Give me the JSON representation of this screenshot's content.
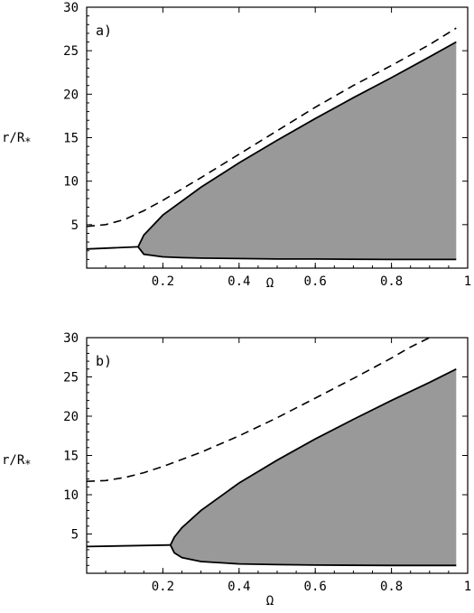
{
  "chart_data": [
    {
      "type": "line",
      "panel_label": "a)",
      "xlabel": "Ω",
      "ylabel": "r/R",
      "ylabel_subscript": "*",
      "xlim": [
        0,
        1
      ],
      "ylim": [
        0,
        30
      ],
      "xticks": [
        0.2,
        0.4,
        0.6,
        0.8,
        1
      ],
      "xtick_labels": [
        "0.2",
        "0.4",
        "0.6",
        "0.8",
        "1"
      ],
      "yticks": [
        5,
        10,
        15,
        20,
        25,
        30
      ],
      "ytick_labels": [
        "5",
        "10",
        "15",
        "20",
        "25",
        "30"
      ],
      "grid": false,
      "fill_color": "#999999",
      "series": [
        {
          "style": "dashed",
          "x": [
            0.0,
            0.05,
            0.1,
            0.15,
            0.2,
            0.3,
            0.4,
            0.5,
            0.6,
            0.7,
            0.8,
            0.9,
            0.97
          ],
          "y": [
            4.8,
            5.0,
            5.6,
            6.6,
            7.8,
            10.4,
            13.1,
            15.8,
            18.5,
            21.0,
            23.3,
            25.7,
            27.6
          ]
        },
        {
          "style": "solid",
          "x": [
            0.0,
            0.135
          ],
          "y": [
            2.2,
            2.45
          ]
        },
        {
          "style": "solid",
          "x": [
            0.135,
            0.15,
            0.2,
            0.3,
            0.4,
            0.5,
            0.6,
            0.7,
            0.8,
            0.9,
            0.97
          ],
          "y": [
            2.45,
            3.8,
            6.1,
            9.3,
            12.1,
            14.7,
            17.2,
            19.6,
            21.9,
            24.3,
            26.0
          ]
        },
        {
          "style": "solid",
          "x": [
            0.135,
            0.15,
            0.2,
            0.25,
            0.3,
            0.4,
            0.5,
            0.6,
            0.8,
            0.97
          ],
          "y": [
            2.45,
            1.6,
            1.3,
            1.2,
            1.15,
            1.1,
            1.05,
            1.05,
            1.0,
            1.0
          ]
        }
      ],
      "fill_region": {
        "x_left": 0.135,
        "x_right": 0.97,
        "upper": {
          "x": [
            0.135,
            0.15,
            0.2,
            0.3,
            0.4,
            0.5,
            0.6,
            0.7,
            0.8,
            0.9,
            0.97
          ],
          "y": [
            2.45,
            3.8,
            6.1,
            9.3,
            12.1,
            14.7,
            17.2,
            19.6,
            21.9,
            24.3,
            26.0
          ]
        },
        "lower": {
          "x": [
            0.135,
            0.15,
            0.2,
            0.25,
            0.3,
            0.4,
            0.5,
            0.6,
            0.8,
            0.97
          ],
          "y": [
            2.45,
            1.6,
            1.3,
            1.2,
            1.15,
            1.1,
            1.05,
            1.05,
            1.0,
            1.0
          ]
        }
      }
    },
    {
      "type": "line",
      "panel_label": "b)",
      "xlabel": "Ω",
      "ylabel": "r/R",
      "ylabel_subscript": "*",
      "xlim": [
        0,
        1
      ],
      "ylim": [
        0,
        30
      ],
      "xticks": [
        0.2,
        0.4,
        0.6,
        0.8,
        1
      ],
      "xtick_labels": [
        "0.2",
        "0.4",
        "0.6",
        "0.8",
        "1"
      ],
      "yticks": [
        5,
        10,
        15,
        20,
        25,
        30
      ],
      "ytick_labels": [
        "5",
        "10",
        "15",
        "20",
        "25",
        "30"
      ],
      "grid": false,
      "fill_color": "#999999",
      "series": [
        {
          "style": "dashed",
          "x": [
            0.0,
            0.05,
            0.1,
            0.15,
            0.2,
            0.3,
            0.4,
            0.5,
            0.6,
            0.7,
            0.8,
            0.85,
            0.9
          ],
          "y": [
            11.7,
            11.8,
            12.2,
            12.8,
            13.6,
            15.4,
            17.5,
            19.8,
            22.3,
            24.8,
            27.4,
            28.8,
            30.0
          ]
        },
        {
          "style": "solid",
          "x": [
            0.0,
            0.22
          ],
          "y": [
            3.4,
            3.6
          ]
        },
        {
          "style": "solid",
          "x": [
            0.22,
            0.23,
            0.25,
            0.3,
            0.4,
            0.5,
            0.6,
            0.7,
            0.8,
            0.9,
            0.97
          ],
          "y": [
            3.6,
            4.6,
            5.8,
            8.0,
            11.5,
            14.4,
            17.1,
            19.6,
            22.0,
            24.3,
            26.0
          ]
        },
        {
          "style": "solid",
          "x": [
            0.22,
            0.23,
            0.25,
            0.3,
            0.4,
            0.5,
            0.6,
            0.8,
            0.97
          ],
          "y": [
            3.6,
            2.6,
            2.0,
            1.5,
            1.2,
            1.1,
            1.05,
            1.0,
            1.0
          ]
        }
      ],
      "fill_region": {
        "x_left": 0.22,
        "x_right": 0.97,
        "upper": {
          "x": [
            0.22,
            0.23,
            0.25,
            0.3,
            0.4,
            0.5,
            0.6,
            0.7,
            0.8,
            0.9,
            0.97
          ],
          "y": [
            3.6,
            4.6,
            5.8,
            8.0,
            11.5,
            14.4,
            17.1,
            19.6,
            22.0,
            24.3,
            26.0
          ]
        },
        "lower": {
          "x": [
            0.22,
            0.23,
            0.25,
            0.3,
            0.4,
            0.5,
            0.6,
            0.8,
            0.97
          ],
          "y": [
            3.6,
            2.6,
            2.0,
            1.5,
            1.2,
            1.1,
            1.05,
            1.0,
            1.0
          ]
        }
      }
    }
  ]
}
